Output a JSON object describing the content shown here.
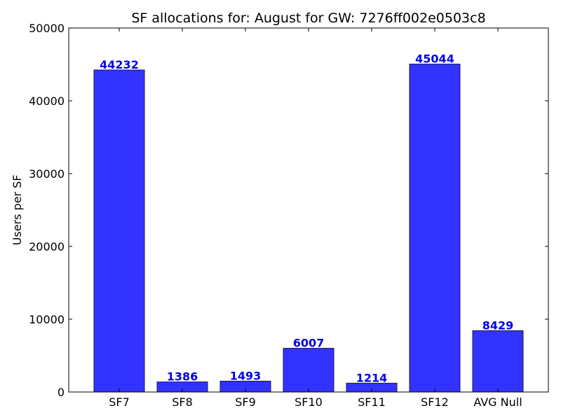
{
  "chart_data": {
    "type": "bar",
    "title": "SF allocations for: August for GW: 7276ff002e0503c8",
    "xlabel": "",
    "ylabel": "Users per SF",
    "categories": [
      "SF7",
      "SF8",
      "SF9",
      "SF10",
      "SF11",
      "SF12",
      "AVG Null"
    ],
    "values": [
      44232,
      1386,
      1493,
      6007,
      1214,
      45044,
      8429
    ],
    "data_labels": [
      "44232",
      "1386",
      "1493",
      "6007",
      "1214",
      "45044",
      "8429"
    ],
    "ylim": [
      0,
      50000
    ],
    "yticks": [
      0,
      10000,
      20000,
      30000,
      40000,
      50000
    ],
    "ytick_labels": [
      "0",
      "10000",
      "20000",
      "30000",
      "40000",
      "50000"
    ],
    "grid": false,
    "colors": {
      "bar_fill": "#3333ff",
      "bar_stroke": "#1a1a4d",
      "data_label": "#0000ee",
      "axis": "#000000"
    }
  }
}
